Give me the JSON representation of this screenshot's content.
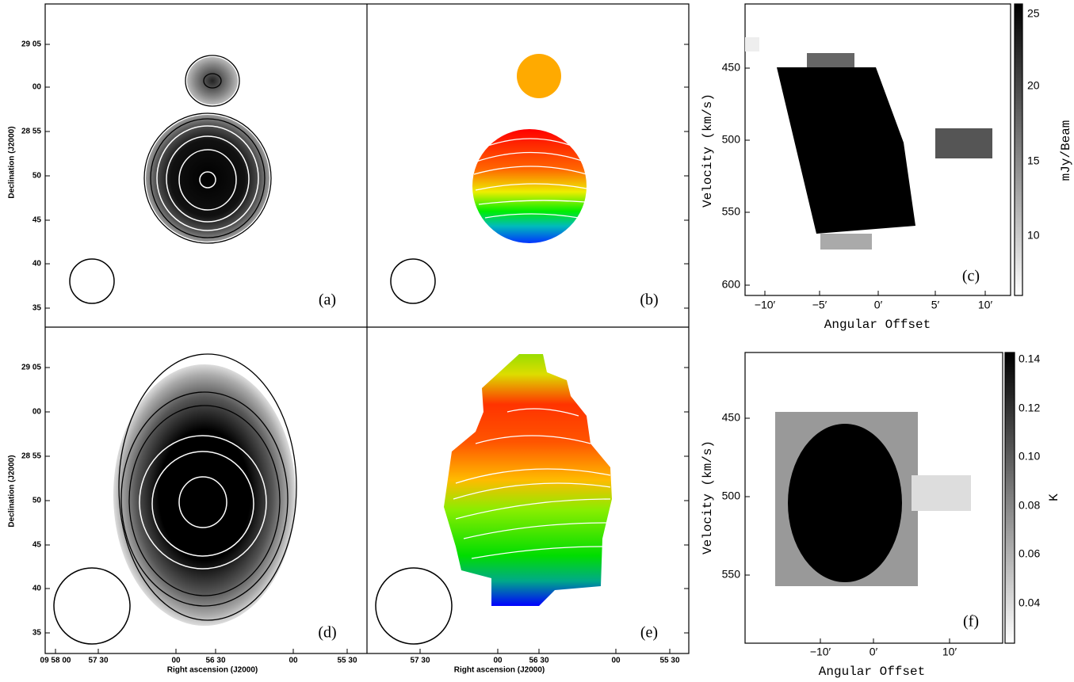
{
  "panels": [
    {
      "label": "(a)"
    },
    {
      "label": "(b)"
    },
    {
      "label": "(d)"
    },
    {
      "label": "(e)"
    },
    {
      "label": "(c)"
    },
    {
      "label": "(f)"
    }
  ],
  "left_axes": {
    "y_label": "Declination (J2000)",
    "x_label": "Right ascension (J2000)",
    "dec_ticks": [
      "29 05",
      "00",
      "28 55",
      "50",
      "45",
      "40",
      "35"
    ],
    "ra_ticks_left": [
      "09 58 00",
      "57 30",
      "00",
      "56 30",
      "00",
      "55 30"
    ],
    "ra_ticks_right": [
      "57 30",
      "00",
      "56 30",
      "00",
      "55 30"
    ]
  },
  "pv_top": {
    "y_label": "Velocity (km/s)",
    "x_label": "Angular Offset",
    "y_ticks": [
      "450",
      "500",
      "550",
      "600"
    ],
    "x_ticks": [
      "−10′",
      "−5′",
      "0′",
      "5′",
      "10′"
    ],
    "colorbar_label": "mJy/Beam",
    "colorbar_ticks": [
      "25",
      "20",
      "15",
      "10"
    ]
  },
  "pv_bottom": {
    "y_label": "Velocity (km/s)",
    "x_label": "Angular Offset",
    "y_ticks": [
      "450",
      "500",
      "550"
    ],
    "x_ticks": [
      "−10′",
      "0′",
      "10′"
    ],
    "colorbar_label": "K",
    "colorbar_ticks": [
      "0.14",
      "0.12",
      "0.10",
      "0.08",
      "0.06",
      "0.04"
    ]
  }
}
